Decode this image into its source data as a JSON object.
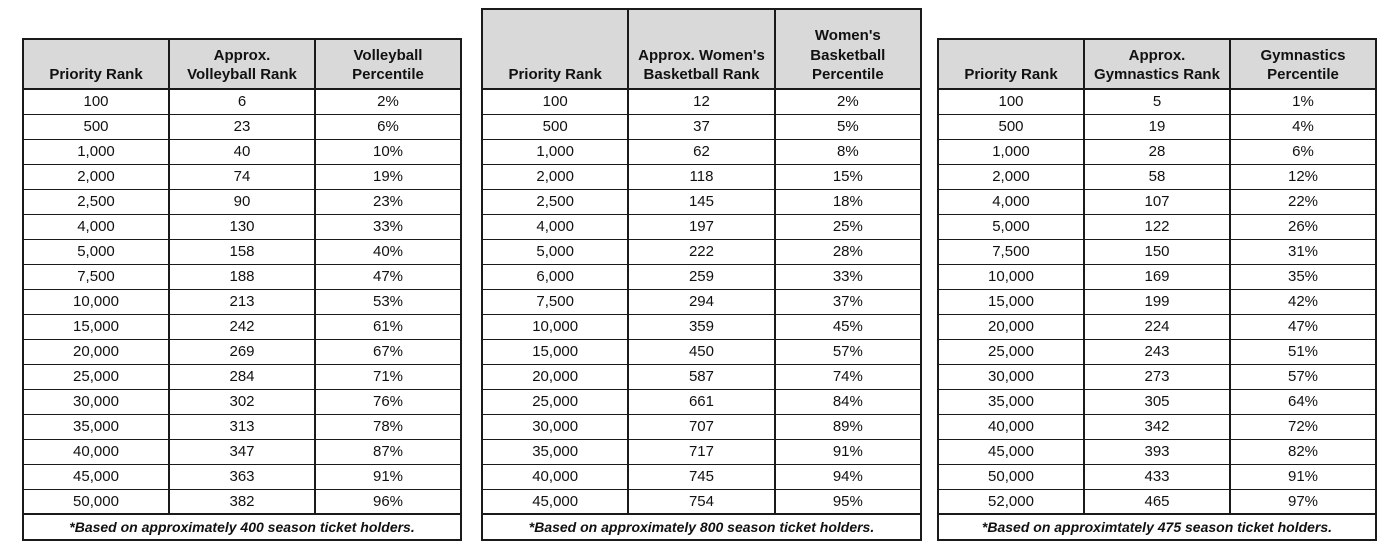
{
  "colors": {
    "header_bg": "#d9d9d9",
    "border": "#1a1a1a",
    "text": "#111111",
    "page_bg": "#ffffff"
  },
  "tables": [
    {
      "name": "volleyball",
      "columns": [
        "Priority Rank",
        "Approx.\nVolleyball Rank",
        "Volleyball\nPercentile"
      ],
      "rows": [
        [
          "100",
          "6",
          "2%"
        ],
        [
          "500",
          "23",
          "6%"
        ],
        [
          "1,000",
          "40",
          "10%"
        ],
        [
          "2,000",
          "74",
          "19%"
        ],
        [
          "2,500",
          "90",
          "23%"
        ],
        [
          "4,000",
          "130",
          "33%"
        ],
        [
          "5,000",
          "158",
          "40%"
        ],
        [
          "7,500",
          "188",
          "47%"
        ],
        [
          "10,000",
          "213",
          "53%"
        ],
        [
          "15,000",
          "242",
          "61%"
        ],
        [
          "20,000",
          "269",
          "67%"
        ],
        [
          "25,000",
          "284",
          "71%"
        ],
        [
          "30,000",
          "302",
          "76%"
        ],
        [
          "35,000",
          "313",
          "78%"
        ],
        [
          "40,000",
          "347",
          "87%"
        ],
        [
          "45,000",
          "363",
          "91%"
        ],
        [
          "50,000",
          "382",
          "96%"
        ]
      ],
      "footnote": "*Based on approximately 400 season ticket holders."
    },
    {
      "name": "womens-basketball",
      "columns": [
        "Priority Rank",
        "Approx. Women's\nBasketball Rank",
        "Women's\nBasketball\nPercentile"
      ],
      "rows": [
        [
          "100",
          "12",
          "2%"
        ],
        [
          "500",
          "37",
          "5%"
        ],
        [
          "1,000",
          "62",
          "8%"
        ],
        [
          "2,000",
          "118",
          "15%"
        ],
        [
          "2,500",
          "145",
          "18%"
        ],
        [
          "4,000",
          "197",
          "25%"
        ],
        [
          "5,000",
          "222",
          "28%"
        ],
        [
          "6,000",
          "259",
          "33%"
        ],
        [
          "7,500",
          "294",
          "37%"
        ],
        [
          "10,000",
          "359",
          "45%"
        ],
        [
          "15,000",
          "450",
          "57%"
        ],
        [
          "20,000",
          "587",
          "74%"
        ],
        [
          "25,000",
          "661",
          "84%"
        ],
        [
          "30,000",
          "707",
          "89%"
        ],
        [
          "35,000",
          "717",
          "91%"
        ],
        [
          "40,000",
          "745",
          "94%"
        ],
        [
          "45,000",
          "754",
          "95%"
        ]
      ],
      "footnote": "*Based on approximately 800 season ticket holders."
    },
    {
      "name": "gymnastics",
      "columns": [
        "Priority Rank",
        "Approx.\nGymnastics Rank",
        "Gymnastics\nPercentile"
      ],
      "rows": [
        [
          "100",
          "5",
          "1%"
        ],
        [
          "500",
          "19",
          "4%"
        ],
        [
          "1,000",
          "28",
          "6%"
        ],
        [
          "2,000",
          "58",
          "12%"
        ],
        [
          "4,000",
          "107",
          "22%"
        ],
        [
          "5,000",
          "122",
          "26%"
        ],
        [
          "7,500",
          "150",
          "31%"
        ],
        [
          "10,000",
          "169",
          "35%"
        ],
        [
          "15,000",
          "199",
          "42%"
        ],
        [
          "20,000",
          "224",
          "47%"
        ],
        [
          "25,000",
          "243",
          "51%"
        ],
        [
          "30,000",
          "273",
          "57%"
        ],
        [
          "35,000",
          "305",
          "64%"
        ],
        [
          "40,000",
          "342",
          "72%"
        ],
        [
          "45,000",
          "393",
          "82%"
        ],
        [
          "50,000",
          "433",
          "91%"
        ],
        [
          "52,000",
          "465",
          "97%"
        ]
      ],
      "footnote": "*Based on approximtately 475 season ticket holders."
    }
  ]
}
